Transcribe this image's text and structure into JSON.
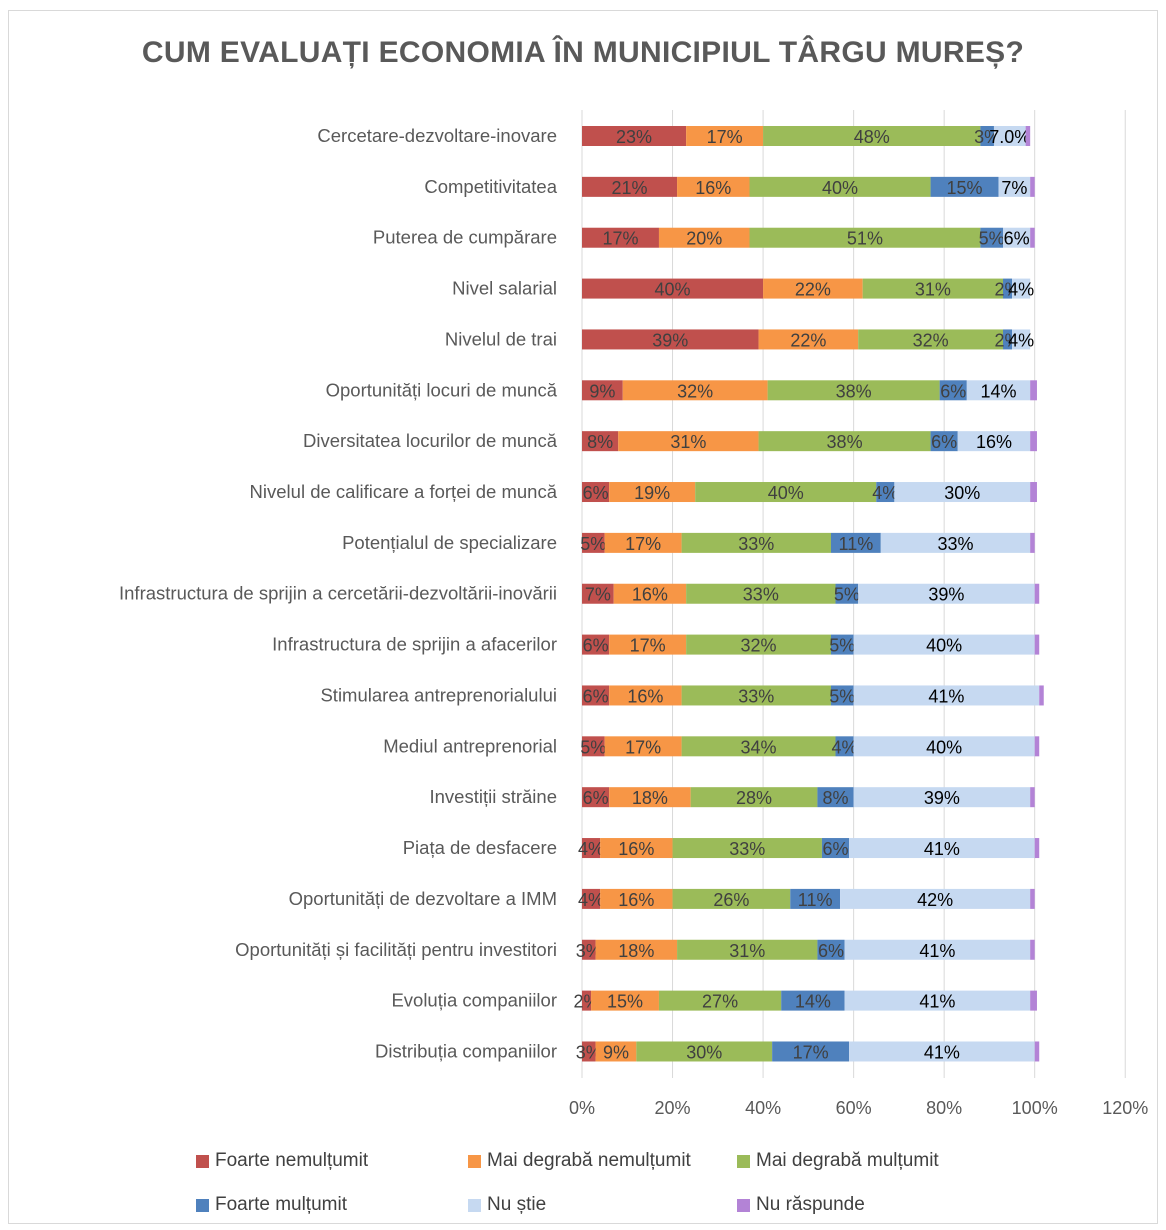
{
  "chart_data": {
    "type": "bar",
    "orientation": "horizontal",
    "stacked": true,
    "title": "CUM EVALUAȚI ECONOMIA ÎN MUNICIPIUL TÂRGU MUREȘ?",
    "categories": [
      "Cercetare-dezvoltare-inovare",
      "Competitivitatea",
      "Puterea de cumpărare",
      "Nivel salarial",
      "Nivelul de trai",
      "Oportunități locuri de muncă",
      "Diversitatea locurilor de muncă",
      "Nivelul de calificare a forței de muncă",
      "Potențialul de specializare",
      "Infrastructura de sprijin a cercetării-dezvoltării-inovării",
      "Infrastructura de sprijin a afacerilor",
      "Stimularea antreprenorialului",
      "Mediul antreprenorial",
      "Investiții străine",
      "Piața de desfacere",
      "Oportunități de dezvoltare a IMM",
      "Oportunități și facilități pentru investitori",
      "Evoluția companiilor",
      "Distribuția companiilor"
    ],
    "series": [
      {
        "name": "Foarte nemulțumit",
        "color": "#c0504d",
        "values": [
          23,
          21,
          17,
          40,
          39,
          9,
          8,
          6,
          5,
          7,
          6,
          6,
          5,
          6,
          4,
          4,
          3,
          2,
          3
        ],
        "labels": [
          "23%",
          "21%",
          "17%",
          "40%",
          "39%",
          "9%",
          "8%",
          "6%",
          "5%",
          "7%",
          "6%",
          "6%",
          "5%",
          "6%",
          "4%",
          "4%",
          "3%",
          "2%",
          "3%"
        ]
      },
      {
        "name": "Mai degrabă nemulțumit",
        "color": "#f79646",
        "values": [
          17,
          16,
          20,
          22,
          22,
          32,
          31,
          19,
          17,
          16,
          17,
          16,
          17,
          18,
          16,
          16,
          18,
          15,
          9
        ],
        "labels": [
          "17%",
          "16%",
          "20%",
          "22%",
          "22%",
          "32%",
          "31%",
          "19%",
          "17%",
          "16%",
          "17%",
          "16%",
          "17%",
          "18%",
          "16%",
          "16%",
          "18%",
          "15%",
          "9%"
        ]
      },
      {
        "name": "Mai degrabă mulțumit",
        "color": "#9bbb59",
        "values": [
          48,
          40,
          51,
          31,
          32,
          38,
          38,
          40,
          33,
          33,
          32,
          33,
          34,
          28,
          33,
          26,
          31,
          27,
          30
        ],
        "labels": [
          "48%",
          "40%",
          "51%",
          "31%",
          "32%",
          "38%",
          "38%",
          "40%",
          "33%",
          "33%",
          "32%",
          "33%",
          "34%",
          "28%",
          "33%",
          "26%",
          "31%",
          "27%",
          "30%"
        ]
      },
      {
        "name": "Foarte mulțumit",
        "color": "#4f81bd",
        "values": [
          3,
          15,
          5,
          2,
          2,
          6,
          6,
          4,
          11,
          5,
          5,
          5,
          4,
          8,
          6,
          11,
          6,
          14,
          17
        ],
        "labels": [
          "3%",
          "15%",
          "5%",
          "2%",
          "2%",
          "6%",
          "6%",
          "4%",
          "11%",
          "5%",
          "5%",
          "5%",
          "4%",
          "8%",
          "6%",
          "11%",
          "6%",
          "14%",
          "17%"
        ]
      },
      {
        "name": "Nu știe",
        "color": "#c6d9f1",
        "values": [
          7,
          7,
          6,
          4,
          4,
          14,
          16,
          30,
          33,
          39,
          40,
          41,
          40,
          39,
          41,
          42,
          41,
          41,
          41
        ],
        "labels": [
          "7.0%",
          "7%",
          "6%",
          "4%",
          "4%",
          "14%",
          "16%",
          "30%",
          "33%",
          "39%",
          "40%",
          "41%",
          "40%",
          "39%",
          "41%",
          "42%",
          "41%",
          "41%",
          "41%"
        ]
      },
      {
        "name": "Nu răspunde",
        "color": "#b383d6",
        "values": [
          1,
          1,
          1,
          0,
          0,
          1.5,
          1.5,
          1.5,
          1,
          1,
          1,
          1,
          1,
          1,
          1,
          1,
          1,
          1.5,
          1
        ],
        "labels": []
      }
    ],
    "xlim": [
      0,
      120
    ],
    "xticks": [
      "0%",
      "20%",
      "40%",
      "60%",
      "80%",
      "100%",
      "120%"
    ],
    "grid": true,
    "legend_position": "bottom"
  }
}
